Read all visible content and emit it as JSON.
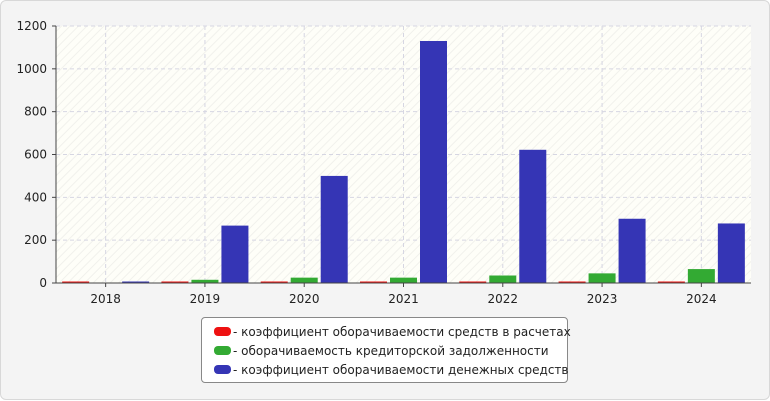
{
  "chart_data": {
    "type": "bar",
    "categories": [
      "2018",
      "2019",
      "2020",
      "2021",
      "2022",
      "2023",
      "2024"
    ],
    "series": [
      {
        "name": "- коэффициент оборачиваемости средств в расчетах",
        "color": "#ee1111",
        "values": [
          4,
          4,
          4,
          4,
          4,
          4,
          4
        ]
      },
      {
        "name": "- оборачиваемость кредиторской задолженности",
        "color": "#33aa33",
        "values": [
          0,
          15,
          25,
          25,
          35,
          45,
          65
        ]
      },
      {
        "name": "- коэффициент оборачиваемости денежных средств",
        "color": "#3535b5",
        "values": [
          3,
          268,
          500,
          1130,
          622,
          300,
          278
        ]
      }
    ],
    "ylim": [
      0,
      1200
    ],
    "yticks": [
      "0",
      "200",
      "400",
      "600",
      "800",
      "1000",
      "1200"
    ],
    "grid": true,
    "legend": "bottom-center"
  }
}
